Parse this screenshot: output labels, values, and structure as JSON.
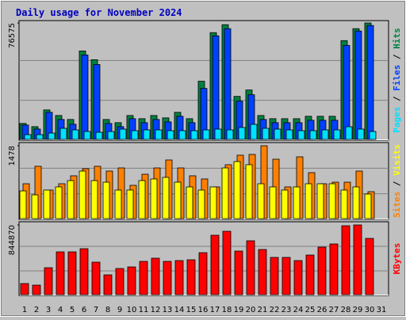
{
  "chart_data": [
    {
      "type": "bar",
      "title": "Daily usage for November 2024",
      "legend_separator": " / ",
      "ylim": [
        0,
        76575
      ],
      "yticks": [
        76575
      ],
      "grid": true,
      "series": [
        {
          "name": "Pages",
          "color": "#00e0ff",
          "values": [
            3126,
            3126,
            4168,
            7294,
            6252,
            5210,
            4689,
            5210,
            6773,
            5731,
            6252,
            6252,
            5731,
            5731,
            5731,
            6252,
            6773,
            6252,
            7815,
            9899,
            7294,
            6773,
            6252,
            5731,
            5731,
            6252,
            6252,
            8336,
            6773,
            5210,
            null
          ]
        },
        {
          "name": "Files",
          "color": "#0040ff",
          "values": [
            9432,
            6812,
            17816,
            13100,
            9956,
            55544,
            49256,
            10480,
            8384,
            13624,
            11004,
            13100,
            11528,
            15196,
            11004,
            33536,
            68120,
            72836,
            25152,
            29344,
            13100,
            11004,
            11004,
            11004,
            12576,
            12576,
            12576,
            61832,
            71264,
            74932,
            null
          ]
        },
        {
          "name": "Hits",
          "color": "#008040",
          "values": [
            10480,
            8384,
            19388,
            15720,
            13100,
            58164,
            52400,
            13100,
            11004,
            15720,
            13624,
            15720,
            14148,
            17816,
            13624,
            38252,
            70216,
            75456,
            28296,
            32488,
            15720,
            13624,
            13624,
            13624,
            15196,
            15196,
            15196,
            64976,
            72836,
            76575,
            null
          ]
        }
      ]
    },
    {
      "type": "bar",
      "ylim": [
        0,
        1478
      ],
      "yticks": [
        1478
      ],
      "grid": true,
      "series": [
        {
          "name": "Sites",
          "color": "#ff8000",
          "values": [
            707,
            1061,
            579,
            707,
            868,
            1012,
            1061,
            964,
            1028,
            675,
            900,
            1028,
            1189,
            1028,
            868,
            804,
            643,
            1093,
            1286,
            1302,
            1478,
            1205,
            643,
            1253,
            932,
            707,
            739,
            739,
            964,
            546,
            null
          ]
        },
        {
          "name": "Visits",
          "color": "#ffff00",
          "values": [
            562,
            482,
            579,
            643,
            771,
            964,
            771,
            739,
            579,
            579,
            771,
            804,
            836,
            739,
            643,
            579,
            643,
            1028,
            1157,
            1093,
            707,
            643,
            579,
            643,
            707,
            707,
            707,
            579,
            643,
            498,
            null
          ]
        }
      ]
    },
    {
      "type": "bar",
      "ylim": [
        0,
        844870
      ],
      "yticks": [
        844870
      ],
      "grid": true,
      "categories": [
        "1",
        "2",
        "3",
        "4",
        "5",
        "6",
        "7",
        "8",
        "9",
        "10",
        "11",
        "12",
        "13",
        "14",
        "15",
        "16",
        "17",
        "18",
        "19",
        "20",
        "21",
        "22",
        "23",
        "24",
        "25",
        "26",
        "27",
        "28",
        "29",
        "30",
        "31"
      ],
      "category_colors": [
        "#000000",
        "#000000",
        "#008040",
        "#000000",
        "#000000",
        "#000000",
        "#000000",
        "#000000",
        "#008040",
        "#008040",
        "#000000",
        "#000000",
        "#000000",
        "#000000",
        "#000000",
        "#008040",
        "#008040",
        "#000000",
        "#000000",
        "#000000",
        "#000000",
        "#000000",
        "#008040",
        "#008040",
        "#000000",
        "#000000",
        "#000000",
        "#000000",
        "#000000",
        "#008040",
        "#008040"
      ],
      "series": [
        {
          "name": "KBytes",
          "color": "#ff0000",
          "values": [
            134414,
            115212,
            326434,
            518454,
            518454,
            556858,
            393641,
            240025,
            316833,
            336035,
            403242,
            441646,
            403242,
            412843,
            422444,
            508853,
            720075,
            768080,
            528055,
            652868,
            547257,
            451247,
            451247,
            412843,
            480050,
            576060,
            614464,
            835287,
            844870,
            681671,
            null
          ]
        }
      ]
    }
  ]
}
